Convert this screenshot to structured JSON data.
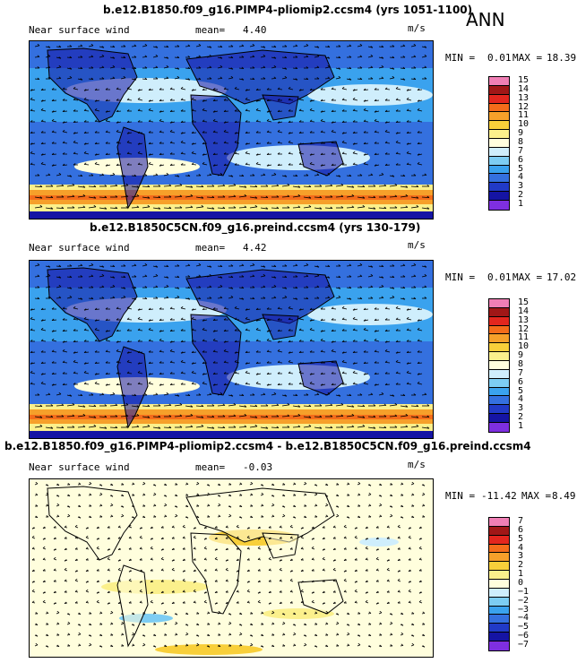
{
  "season": "ANN",
  "chart_data": [
    {
      "type": "heatmap",
      "title": "b.e12.B1850.f09_g16.PIMP4-pliomip2.ccsm4 (yrs 1051-1100)",
      "variable": "Near surface wind",
      "mean_label": "mean=",
      "mean": "4.40",
      "units": "m/s",
      "min_label": "MIN =",
      "min": "0.01",
      "max_label": "MAX =",
      "max": "18.39",
      "levels": [
        "15",
        "14",
        "13",
        "12",
        "11",
        "10",
        "9",
        "8",
        "7",
        "6",
        "5",
        "4",
        "3",
        "2",
        "1"
      ],
      "colors": [
        "#f07fb5",
        "#a11717",
        "#e3261e",
        "#f46c1a",
        "#f6a02a",
        "#f8cf3a",
        "#fbf08c",
        "#fffedd",
        "#cfeefc",
        "#7dcdf3",
        "#3aa2ee",
        "#3470df",
        "#213ac7",
        "#1514a4",
        "#7e2fe0"
      ],
      "map_scheme": "wind"
    },
    {
      "type": "heatmap",
      "title": "b.e12.B1850C5CN.f09_g16.preind.ccsm4 (yrs 130-179)",
      "variable": "Near surface wind",
      "mean_label": "mean=",
      "mean": "4.42",
      "units": "m/s",
      "min_label": "MIN =",
      "min": "0.01",
      "max_label": "MAX =",
      "max": "17.02",
      "levels": [
        "15",
        "14",
        "13",
        "12",
        "11",
        "10",
        "9",
        "8",
        "7",
        "6",
        "5",
        "4",
        "3",
        "2",
        "1"
      ],
      "colors": [
        "#f07fb5",
        "#a11717",
        "#e3261e",
        "#f46c1a",
        "#f6a02a",
        "#f8cf3a",
        "#fbf08c",
        "#fffedd",
        "#cfeefc",
        "#7dcdf3",
        "#3aa2ee",
        "#3470df",
        "#213ac7",
        "#1514a4",
        "#7e2fe0"
      ],
      "map_scheme": "wind"
    },
    {
      "type": "heatmap",
      "title": "b.e12.B1850.f09_g16.PIMP4-pliomip2.ccsm4 - b.e12.B1850C5CN.f09_g16.preind.ccsm4",
      "variable": "Near surface wind",
      "mean_label": "mean=",
      "mean": "-0.03",
      "units": "m/s",
      "min_label": "MIN =",
      "min": "-11.42",
      "max_label": "MAX =",
      "max": "8.49",
      "levels": [
        "7",
        "6",
        "5",
        "4",
        "3",
        "2",
        "1",
        "0",
        "−1",
        "−2",
        "−3",
        "−4",
        "−5",
        "−6",
        "−7"
      ],
      "colors": [
        "#f07fb5",
        "#a11717",
        "#e3261e",
        "#f46c1a",
        "#f6a02a",
        "#f8cf3a",
        "#fbf08c",
        "#fffedd",
        "#cfeefc",
        "#7dcdf3",
        "#3aa2ee",
        "#3470df",
        "#213ac7",
        "#1514a4",
        "#7e2fe0"
      ],
      "map_scheme": "diff"
    }
  ]
}
